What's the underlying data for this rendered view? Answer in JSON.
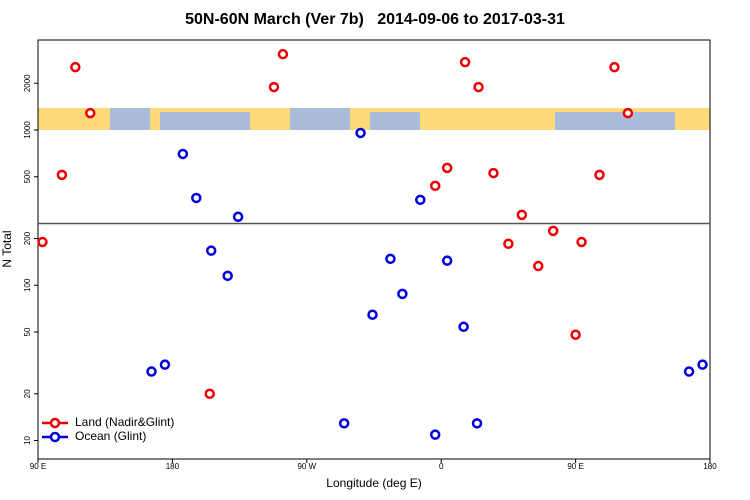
{
  "chart_data": {
    "type": "scatter",
    "title": "50N-60N March (Ver 7b)   2014-09-06 to 2017-03-31",
    "x_label": "Longitude (deg E)",
    "y_label": "N Total",
    "xlim": [
      90,
      540
    ],
    "xticks": [
      {
        "value": 90,
        "label": "90 E"
      },
      {
        "value": 180,
        "label": "180"
      },
      {
        "value": 270,
        "label": "90 W"
      },
      {
        "value": 360,
        "label": "0"
      },
      {
        "value": 450,
        "label": "90 E"
      },
      {
        "value": 540,
        "label": "180"
      }
    ],
    "ylim": [
      7.6,
      3800
    ],
    "yticks": [
      10,
      20,
      50,
      100,
      200,
      500,
      1000,
      2000
    ],
    "y_log": true,
    "reference_line": 250,
    "legend_position": "bottom-left",
    "series": [
      {
        "name": "Land (Nadir&Glint)",
        "color": "#ee0000",
        "x": [
          93,
          106,
          115,
          125,
          205,
          248,
          254,
          356,
          364,
          376,
          385,
          395,
          405,
          414,
          425,
          435,
          450,
          454,
          466,
          476,
          485
        ],
        "values": [
          190,
          514,
          2540,
          1285,
          20,
          1890,
          3080,
          437,
          570,
          2735,
          1890,
          528,
          185,
          284,
          133,
          224,
          48,
          190,
          514,
          2540,
          1285
        ]
      },
      {
        "name": "Ocean (Glint)",
        "color": "#0000dd",
        "x": [
          166,
          175,
          187,
          196,
          206,
          217,
          224,
          295,
          306,
          314,
          326,
          334,
          346,
          356,
          364,
          375,
          384,
          526,
          535
        ],
        "values": [
          27.8,
          30.8,
          701,
          365,
          167,
          115,
          276,
          12.9,
          957,
          64.6,
          148,
          88,
          355,
          10.9,
          144,
          54,
          12.9,
          27.8,
          30.8
        ]
      }
    ]
  }
}
